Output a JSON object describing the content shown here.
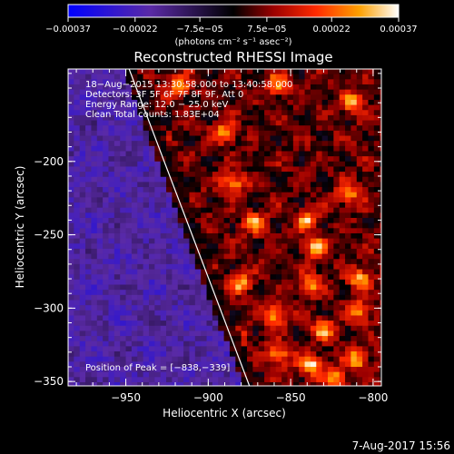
{
  "chart_data": {
    "type": "heatmap",
    "title": "Reconstructed RHESSI Image",
    "xlabel": "Heliocentric X (arcsec)",
    "ylabel": "Heliocentric Y (arcsec)",
    "xlim": [
      -985,
      -795
    ],
    "ylim": [
      -353,
      -137
    ],
    "x_ticks": [
      -950,
      -900,
      -850,
      -800
    ],
    "x_tick_labels": [
      "−950",
      "−900",
      "−850",
      "−800"
    ],
    "y_ticks": [
      -200,
      -250,
      -300,
      -350
    ],
    "y_tick_labels": [
      "−200",
      "−250",
      "−300",
      "−350"
    ],
    "colorbar": {
      "range": [
        -0.00037,
        0.00037
      ],
      "ticks": [
        -0.00037,
        -0.00022,
        -7.5e-05,
        7.5e-05,
        0.00022,
        0.00037
      ],
      "tick_labels": [
        "−0.00037",
        "−0.00022",
        "−7.5e−05",
        "7.5e−05",
        "0.00022",
        "0.00037"
      ],
      "unit_label": "(photons cm⁻² s⁻¹ asec⁻²)"
    },
    "annotations": [
      "18−Aug−2015 13:30:58.000 to 13:40:58.000",
      "Detectors: 3F 5F 6F 7F 8F 9F, Att 0",
      "Energy Range: 12.0 − 25.0 keV",
      "Clean     Total counts: 1.83E+04"
    ],
    "peak_label": "Position of Peak = [−838,−339]",
    "peak": [
      -838,
      -339
    ],
    "limb_line": [
      [
        -948,
        -137
      ],
      [
        -875,
        -353
      ]
    ],
    "limb_color": "#ffffff",
    "bright_sources": [
      [
        -918,
        -148
      ],
      [
        -890,
        -180
      ],
      [
        -858,
        -148
      ],
      [
        -812,
        -160
      ],
      [
        -930,
        -207
      ],
      [
        -885,
        -215
      ],
      [
        -872,
        -242
      ],
      [
        -840,
        -240
      ],
      [
        -835,
        -258
      ],
      [
        -815,
        -222
      ],
      [
        -808,
        -280
      ],
      [
        -838,
        -283
      ],
      [
        -880,
        -283
      ],
      [
        -808,
        -302
      ],
      [
        -860,
        -305
      ],
      [
        -830,
        -315
      ],
      [
        -838,
        -339
      ],
      [
        -810,
        -335
      ],
      [
        -858,
        -332
      ],
      [
        -885,
        -320
      ],
      [
        -823,
        -348
      ]
    ]
  },
  "footer": {
    "timestamp": "7-Aug-2017 15:56"
  }
}
